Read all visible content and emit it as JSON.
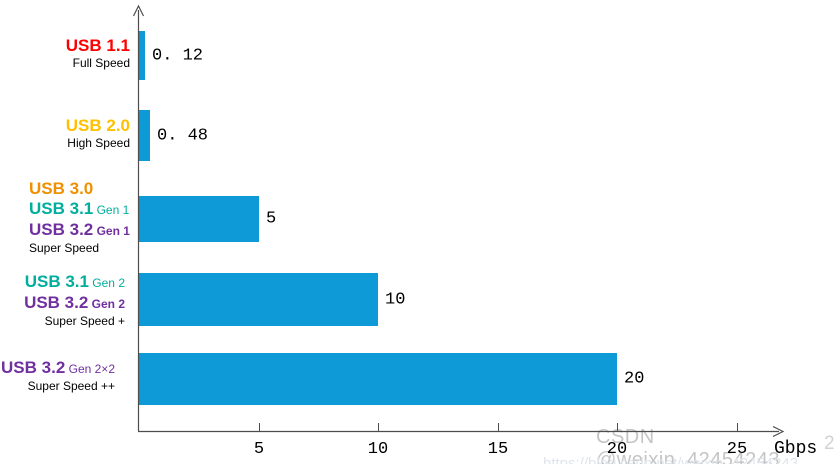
{
  "colors": {
    "bar": "#0D9AD7",
    "usb11_red": "#FF0000",
    "usb20_yellow": "#FFC000",
    "usb30_orange": "#F08F00",
    "usb31_teal": "#00AE9D",
    "usb32_purple": "#7030A0",
    "axis": "#4D4D4D",
    "text": "#000000",
    "watermark": "#C5C5C5"
  },
  "axis": {
    "unit_label": "Gbps",
    "ticks": [
      "5",
      "10",
      "15",
      "20",
      "25"
    ],
    "tick_values": [
      5,
      10,
      15,
      20,
      25
    ]
  },
  "watermark": {
    "line1": "CSDN @weixin_42454243",
    "fragment": "2",
    "line2": "https://blog.csdn.net/weixin_42454243"
  },
  "chart_data": {
    "type": "bar",
    "orientation": "horizontal",
    "title": "",
    "xlabel": "Gbps",
    "xlim": [
      0,
      27
    ],
    "x_ticks": [
      5,
      10,
      15,
      20,
      25
    ],
    "grid": false,
    "legend": false,
    "bar_color": "#0D9AD7",
    "categories": [
      "USB 1.1 (Full Speed)",
      "USB 2.0 (High Speed)",
      "USB 3.0 / USB 3.1 Gen 1 / USB 3.2 Gen 1 (Super Speed)",
      "USB 3.1 Gen 2 / USB 3.2 Gen 2 (Super Speed +)",
      "USB 3.2 Gen 2×2 (Super Speed ++)"
    ],
    "values": [
      0.12,
      0.48,
      5,
      10,
      20
    ],
    "value_labels": [
      "0. 12",
      "0. 48",
      "5",
      "10",
      "20"
    ]
  },
  "rows": [
    {
      "value": 0.12,
      "value_label": "0. 12",
      "lines": [
        {
          "cls": "big",
          "parts": [
            {
              "text": "USB 1.1",
              "style": "big",
              "color": "#FF0000"
            }
          ]
        },
        {
          "cls": "small",
          "parts": [
            {
              "text": "Full Speed",
              "style": "small",
              "color": "#000000"
            }
          ]
        }
      ]
    },
    {
      "value": 0.48,
      "value_label": "0. 48",
      "lines": [
        {
          "cls": "big",
          "parts": [
            {
              "text": "USB 2.0",
              "style": "big",
              "color": "#FFC000"
            }
          ]
        },
        {
          "cls": "small",
          "parts": [
            {
              "text": "High Speed",
              "style": "small",
              "color": "#000000"
            }
          ]
        }
      ]
    },
    {
      "value": 5,
      "value_label": "5",
      "lines": [
        {
          "cls": "big",
          "parts": [
            {
              "text": "USB 3.0",
              "style": "big",
              "color": "#F08F00"
            }
          ]
        },
        {
          "cls": "big",
          "parts": [
            {
              "text": "USB 3.1",
              "style": "big",
              "color": "#00AE9D"
            },
            {
              "text": " Gen 1",
              "style": "small",
              "color": "#00AE9D"
            }
          ]
        },
        {
          "cls": "big",
          "parts": [
            {
              "text": "USB 3.2",
              "style": "big",
              "color": "#7030A0"
            },
            {
              "text": " Gen 1",
              "style": "small-bold",
              "color": "#7030A0"
            }
          ]
        },
        {
          "cls": "small",
          "parts": [
            {
              "text": "Super Speed",
              "style": "small",
              "color": "#000000"
            }
          ]
        }
      ]
    },
    {
      "value": 10,
      "value_label": "10",
      "lines": [
        {
          "cls": "big",
          "parts": [
            {
              "text": "USB 3.1",
              "style": "big",
              "color": "#00AE9D"
            },
            {
              "text": " Gen 2",
              "style": "small",
              "color": "#00AE9D"
            }
          ]
        },
        {
          "cls": "big",
          "parts": [
            {
              "text": "USB 3.2",
              "style": "big",
              "color": "#7030A0"
            },
            {
              "text": " Gen 2",
              "style": "small-bold",
              "color": "#7030A0"
            }
          ]
        },
        {
          "cls": "small",
          "parts": [
            {
              "text": "Super Speed +",
              "style": "small",
              "color": "#000000"
            }
          ]
        }
      ]
    },
    {
      "value": 20,
      "value_label": "20",
      "lines": [
        {
          "cls": "big",
          "parts": [
            {
              "text": "USB 3.2",
              "style": "big",
              "color": "#7030A0"
            },
            {
              "text": " Gen 2×2",
              "style": "small",
              "color": "#7030A0"
            }
          ]
        },
        {
          "cls": "small",
          "parts": [
            {
              "text": "Super Speed ++",
              "style": "small",
              "color": "#000000"
            }
          ]
        }
      ]
    }
  ]
}
